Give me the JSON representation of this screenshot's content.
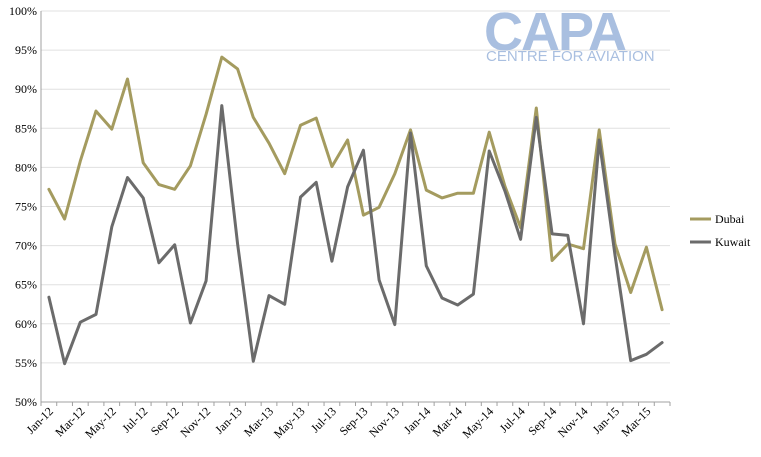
{
  "logo": {
    "main": "CAPA",
    "sub": "CENTRE FOR AVIATION"
  },
  "chart_data": {
    "type": "line",
    "title": "",
    "xlabel": "",
    "ylabel": "",
    "ylim": [
      50,
      100
    ],
    "y_ticks": [
      "50%",
      "55%",
      "60%",
      "65%",
      "70%",
      "75%",
      "80%",
      "85%",
      "90%",
      "95%",
      "100%"
    ],
    "x_tick_labels": [
      "Jan-12",
      "Mar-12",
      "May-12",
      "Jul-12",
      "Sep-12",
      "Nov-12",
      "Jan-13",
      "Mar-13",
      "May-13",
      "Jul-13",
      "Sep-13",
      "Nov-13",
      "Jan-14",
      "Mar-14",
      "May-14",
      "Jul-14",
      "Sep-14",
      "Nov-14",
      "Jan-15",
      "Mar-15"
    ],
    "categories": [
      "Jan-12",
      "Feb-12",
      "Mar-12",
      "Apr-12",
      "May-12",
      "Jun-12",
      "Jul-12",
      "Aug-12",
      "Sep-12",
      "Oct-12",
      "Nov-12",
      "Dec-12",
      "Jan-13",
      "Feb-13",
      "Mar-13",
      "Apr-13",
      "May-13",
      "Jun-13",
      "Jul-13",
      "Aug-13",
      "Sep-13",
      "Oct-13",
      "Nov-13",
      "Dec-13",
      "Jan-14",
      "Feb-14",
      "Mar-14",
      "Apr-14",
      "May-14",
      "Jun-14",
      "Jul-14",
      "Aug-14",
      "Sep-14",
      "Oct-14",
      "Nov-14",
      "Dec-14",
      "Jan-15",
      "Feb-15",
      "Mar-15",
      "Apr-15"
    ],
    "grid": true,
    "legend_position": "right",
    "series": [
      {
        "name": "Dubai",
        "color": "#a49b5f",
        "values": [
          77.2,
          73.4,
          80.8,
          87.2,
          84.9,
          91.3,
          80.6,
          77.8,
          77.2,
          80.2,
          86.8,
          94.1,
          92.6,
          86.4,
          83.1,
          79.2,
          85.4,
          86.3,
          80.1,
          83.5,
          73.9,
          74.9,
          79.2,
          84.8,
          77.1,
          76.1,
          76.7,
          76.7,
          84.5,
          77.6,
          72.3,
          87.6,
          68.1,
          70.2,
          69.6,
          84.8,
          70.2,
          64.0,
          69.8,
          61.8
        ]
      },
      {
        "name": "Kuwait",
        "color": "#6b6b6b",
        "values": [
          63.4,
          54.9,
          60.2,
          61.2,
          72.4,
          78.7,
          76.1,
          67.8,
          70.1,
          60.1,
          65.5,
          87.9,
          70.2,
          55.2,
          63.6,
          62.5,
          76.2,
          78.1,
          68.0,
          77.5,
          82.2,
          65.6,
          59.9,
          84.4,
          67.4,
          63.3,
          62.4,
          63.8,
          82.1,
          77.0,
          70.8,
          86.4,
          71.5,
          71.3,
          60.0,
          83.5,
          68.8,
          55.3,
          56.1,
          57.6
        ]
      }
    ]
  }
}
